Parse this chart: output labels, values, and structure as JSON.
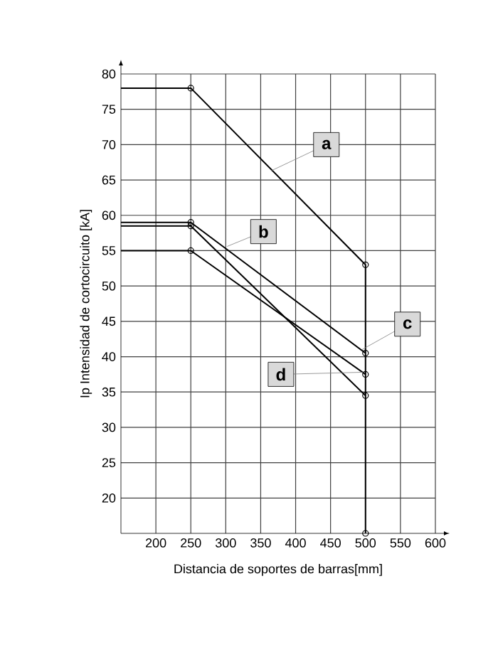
{
  "chart_data": {
    "type": "line",
    "xlabel": "Distancia de soportes de barras[mm]",
    "ylabel": "Ip Intensidad de cortocircuito [kA]",
    "xlim": [
      150,
      600
    ],
    "ylim": [
      15,
      80
    ],
    "xticks": [
      200,
      250,
      300,
      350,
      400,
      450,
      500,
      550,
      600
    ],
    "yticks": [
      20,
      25,
      30,
      35,
      40,
      45,
      50,
      55,
      60,
      65,
      70,
      75,
      80
    ],
    "grid": true,
    "marker": "circle",
    "line_style": "solid",
    "series": [
      {
        "name": "a",
        "color": "#000000",
        "x": [
          150,
          250,
          500,
          500
        ],
        "values": [
          78,
          78,
          53,
          15
        ]
      },
      {
        "name": "b",
        "color": "#000000",
        "x": [
          150,
          250,
          500
        ],
        "values": [
          59,
          59,
          40.5
        ]
      },
      {
        "name": "c",
        "color": "#000000",
        "x": [
          150,
          250,
          500
        ],
        "values": [
          55,
          55,
          37.5
        ]
      },
      {
        "name": "d",
        "color": "#000000",
        "x": [
          150,
          250,
          500
        ],
        "values": [
          58.5,
          58.5,
          34.5
        ]
      }
    ]
  }
}
